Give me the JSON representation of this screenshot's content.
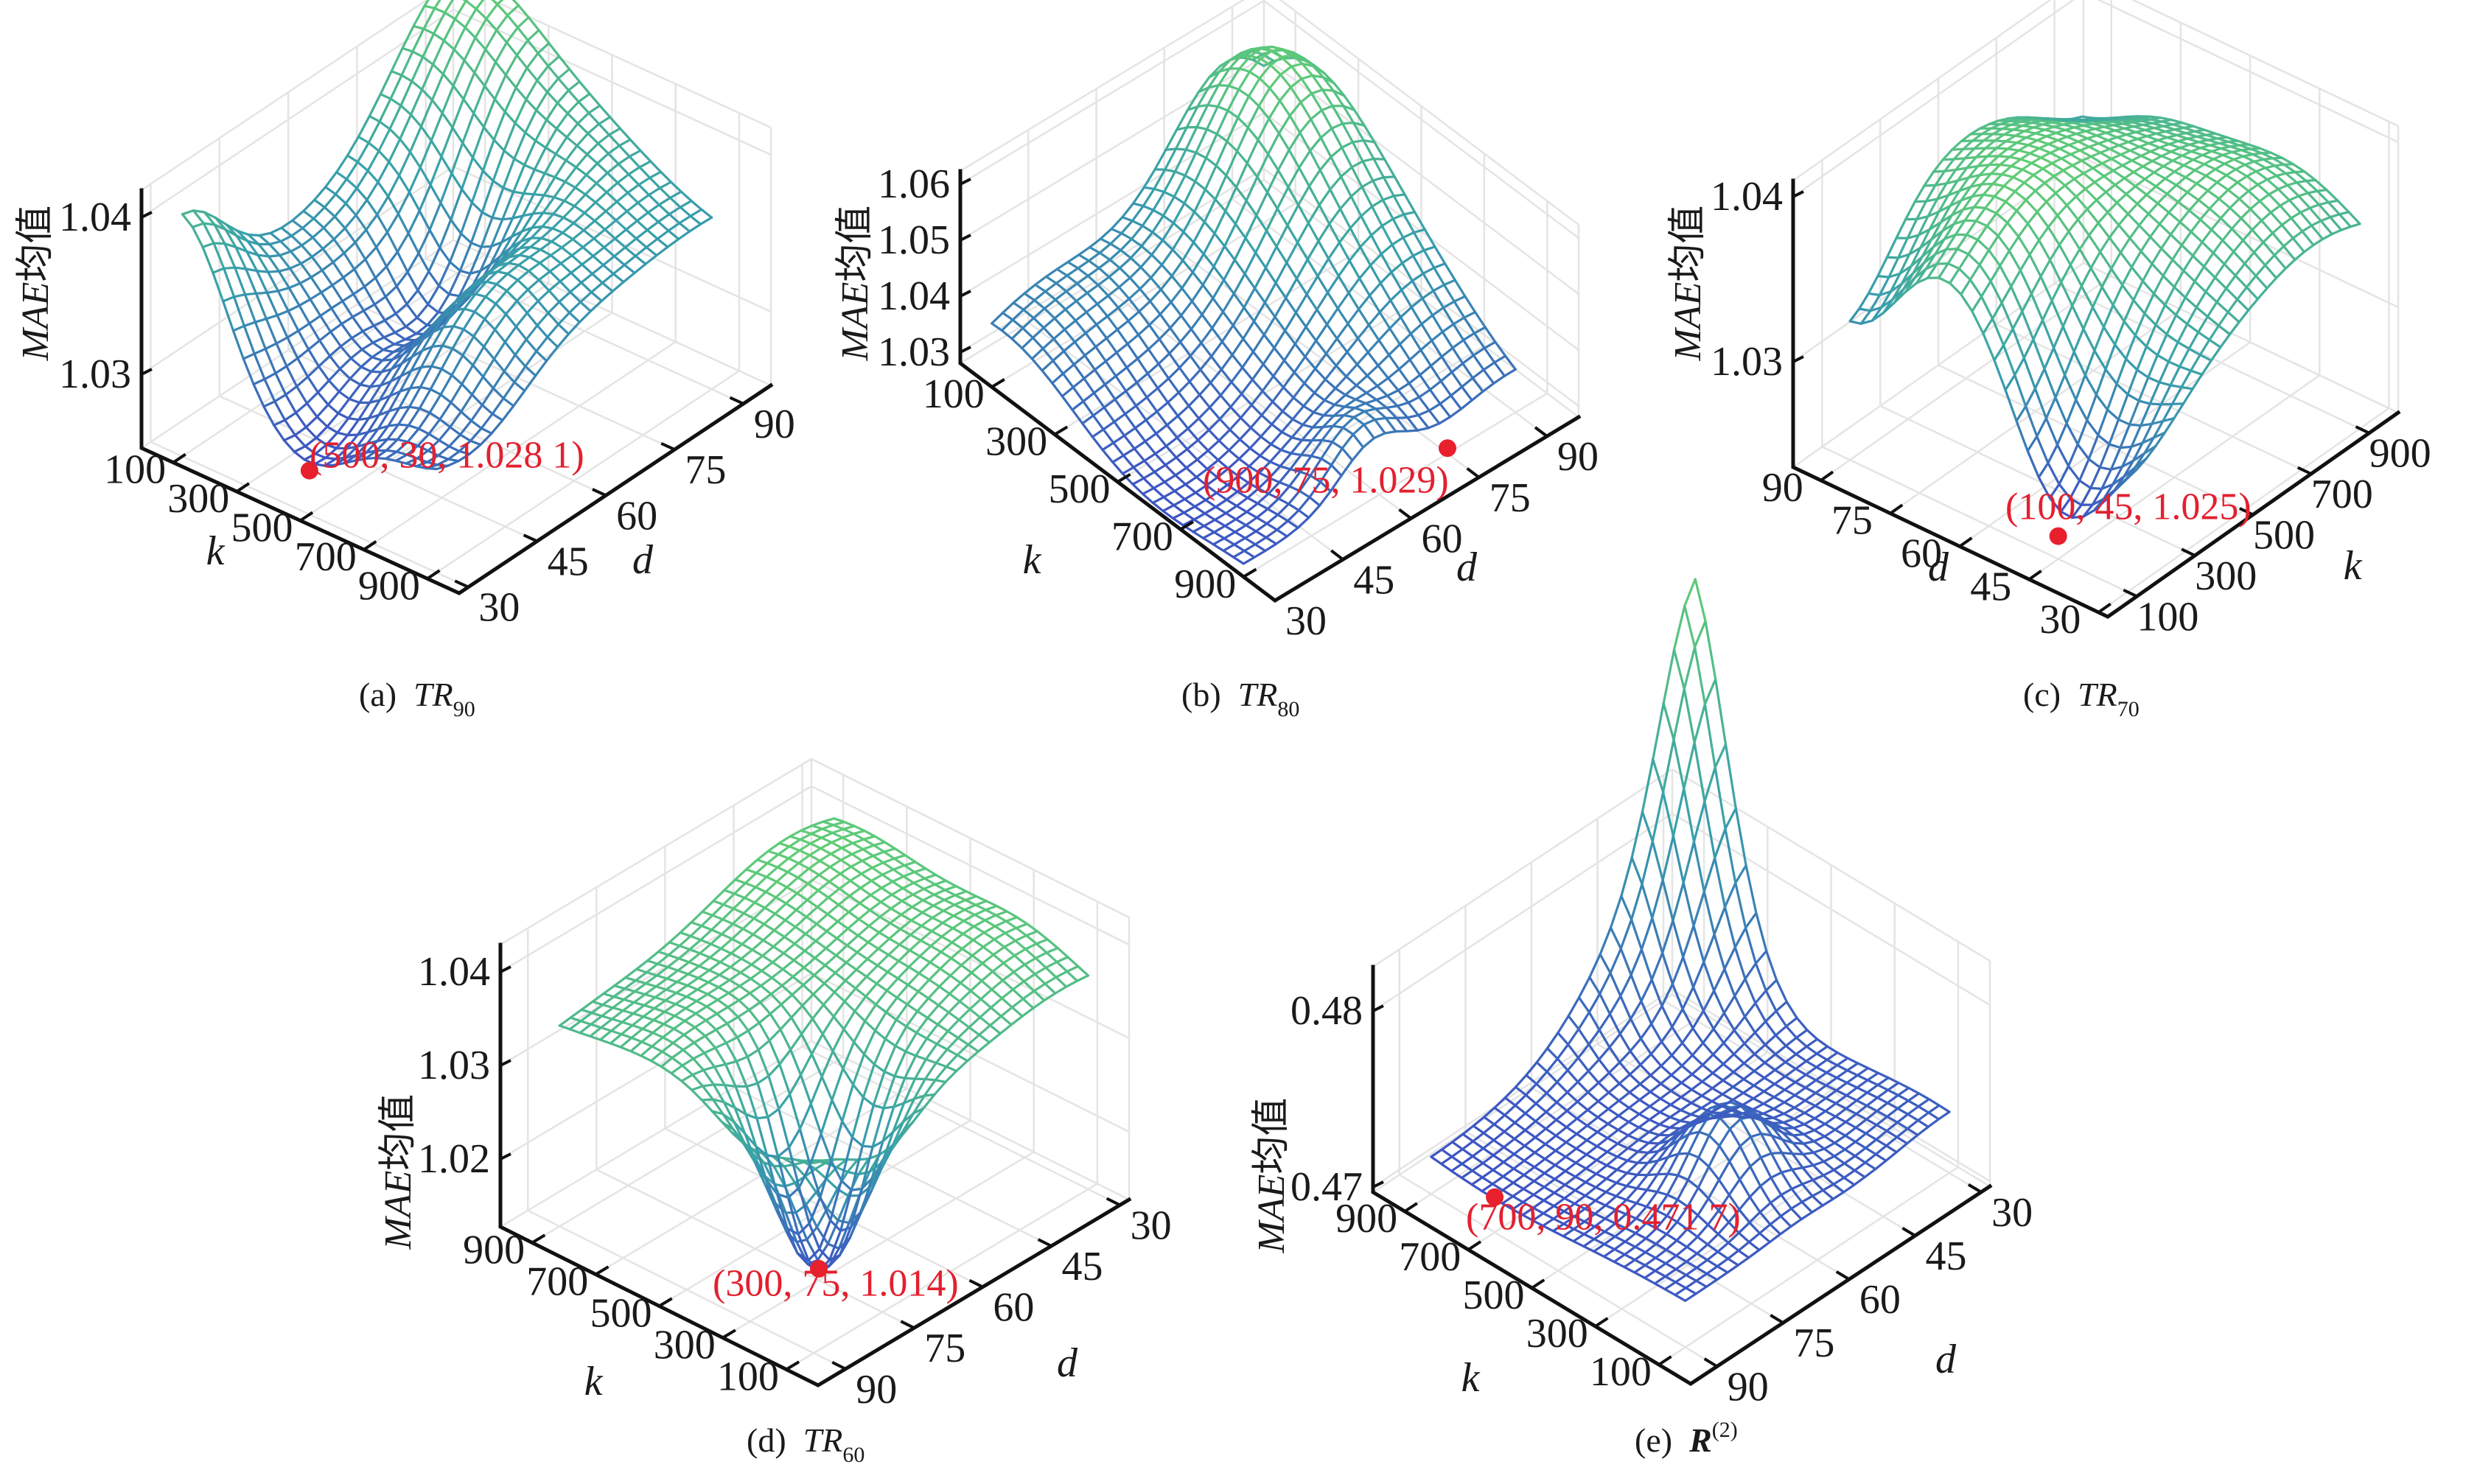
{
  "figure": {
    "zlabel_italic": "MAE",
    "zlabel_rest": "均值",
    "colors": {
      "surface_low": "#3d55c3",
      "surface_mid": "#38a0aa",
      "surface_high": "#60cc76",
      "min_marker": "#e8202e",
      "axis": "#111111",
      "grid": "#e4e4e4"
    }
  },
  "chart_data": [
    {
      "id": "a",
      "type": "surface",
      "title": "(a) TR90",
      "caption": {
        "letter": "(a)",
        "main": "TR",
        "sub": "90",
        "sup": ""
      },
      "xlabel": "k",
      "ylabel": "d",
      "zlabel": "MAE均值",
      "k_ticks": [
        "100",
        "300",
        "500",
        "700",
        "900"
      ],
      "d_ticks": [
        "30",
        "45",
        "60",
        "75",
        "90"
      ],
      "z_ticks": [
        "1.03",
        "1.04"
      ],
      "z_tick_values": [
        1.03,
        1.04
      ],
      "k_range": [
        100,
        900
      ],
      "d_range": [
        30,
        90
      ],
      "zlim": [
        1.025,
        1.046
      ],
      "grid": true,
      "minimum": {
        "k": 500,
        "d": 30,
        "z": 1.0281,
        "label": "(500, 30, 1.028 1)"
      }
    },
    {
      "id": "b",
      "type": "surface",
      "title": "(b) TR80",
      "caption": {
        "letter": "(b)",
        "main": "TR",
        "sub": "80",
        "sup": ""
      },
      "xlabel": "k",
      "ylabel": "d",
      "zlabel": "MAE均值",
      "k_ticks": [
        "100",
        "300",
        "500",
        "700",
        "900"
      ],
      "d_ticks": [
        "30",
        "45",
        "60",
        "75",
        "90"
      ],
      "z_ticks": [
        "1.03",
        "1.04",
        "1.05",
        "1.06"
      ],
      "z_tick_values": [
        1.03,
        1.04,
        1.05,
        1.06
      ],
      "k_range": [
        100,
        900
      ],
      "d_range": [
        30,
        90
      ],
      "zlim": [
        1.028,
        1.062
      ],
      "grid": true,
      "minimum": {
        "k": 900,
        "d": 75,
        "z": 1.029,
        "label": "(900, 75, 1.029)"
      }
    },
    {
      "id": "c",
      "type": "surface",
      "title": "(c) TR70",
      "caption": {
        "letter": "(c)",
        "main": "TR",
        "sub": "70",
        "sup": ""
      },
      "xlabel": "k",
      "ylabel": "d",
      "zlabel": "MAE均值",
      "k_ticks": [
        "100",
        "300",
        "500",
        "700",
        "900"
      ],
      "d_ticks": [
        "30",
        "45",
        "60",
        "75",
        "90"
      ],
      "z_ticks": [
        "1.03",
        "1.04"
      ],
      "z_tick_values": [
        1.03,
        1.04
      ],
      "k_range": [
        100,
        900
      ],
      "d_range": [
        30,
        90
      ],
      "zlim": [
        1.024,
        1.041
      ],
      "grid": true,
      "minimum": {
        "k": 100,
        "d": 45,
        "z": 1.025,
        "label": "(100, 45, 1.025)"
      }
    },
    {
      "id": "d",
      "type": "surface",
      "title": "(d) TR60",
      "caption": {
        "letter": "(d)",
        "main": "TR",
        "sub": "60",
        "sup": ""
      },
      "xlabel": "k",
      "ylabel": "d",
      "zlabel": "MAE均值",
      "k_ticks": [
        "100",
        "300",
        "500",
        "700",
        "900"
      ],
      "d_ticks": [
        "30",
        "45",
        "60",
        "75",
        "90"
      ],
      "z_ticks": [
        "1.02",
        "1.03",
        "1.04"
      ],
      "z_tick_values": [
        1.02,
        1.03,
        1.04
      ],
      "k_range": [
        100,
        900
      ],
      "d_range": [
        30,
        90
      ],
      "zlim": [
        1.013,
        1.042
      ],
      "grid": true,
      "minimum": {
        "k": 300,
        "d": 75,
        "z": 1.014,
        "label": "(300, 75, 1.014)"
      }
    },
    {
      "id": "e",
      "type": "surface",
      "title": "(e) R(2)",
      "caption": {
        "letter": "(e)",
        "main": "R",
        "sub": "",
        "sup": "(2)"
      },
      "xlabel": "k",
      "ylabel": "d",
      "zlabel": "MAE均值",
      "k_ticks": [
        "100",
        "300",
        "500",
        "700",
        "900"
      ],
      "d_ticks": [
        "30",
        "45",
        "60",
        "75",
        "90"
      ],
      "z_ticks": [
        "0.47",
        "0.48"
      ],
      "z_tick_values": [
        0.47,
        0.48
      ],
      "k_range": [
        100,
        900
      ],
      "d_range": [
        30,
        90
      ],
      "zlim": [
        0.4697,
        0.491
      ],
      "grid": true,
      "minimum": {
        "k": 700,
        "d": 90,
        "z": 0.4717,
        "label": "(700, 90, 0.471 7)"
      }
    }
  ]
}
